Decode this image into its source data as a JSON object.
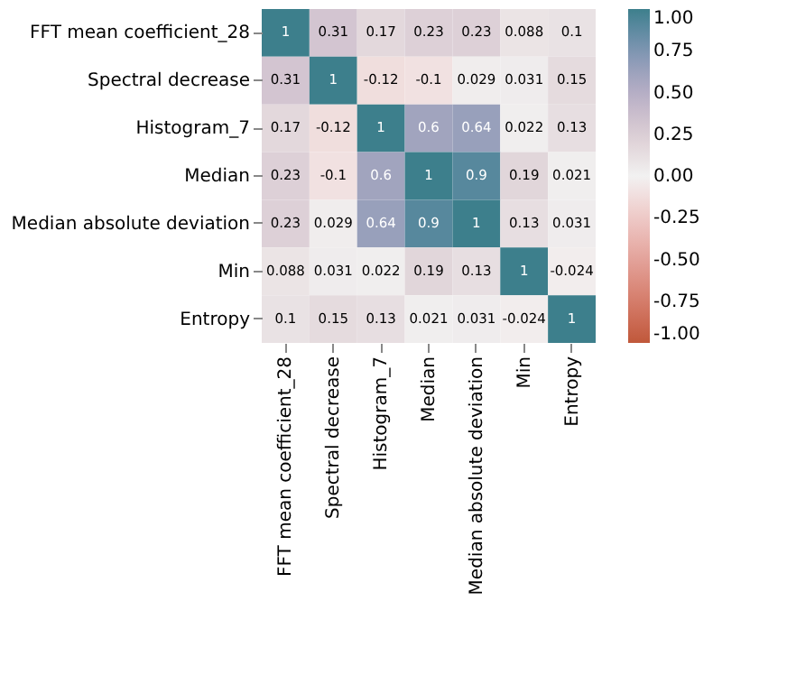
{
  "chart_data": {
    "type": "heatmap",
    "categories": [
      "FFT mean coefficient_28",
      "Spectral decrease",
      "Histogram_7",
      "Median",
      "Median absolute deviation",
      "Min",
      "Entropy"
    ],
    "y_categories": [
      "FFT mean coefficient_28",
      "Spectral decrease",
      "Histogram_7",
      "Median",
      "Median absolute deviation",
      "Min",
      "Entropy"
    ],
    "cells": [
      [
        1,
        0.31,
        0.17,
        0.23,
        0.23,
        0.088,
        0.1
      ],
      [
        0.31,
        1,
        -0.12,
        -0.1,
        0.029,
        0.031,
        0.15
      ],
      [
        0.17,
        -0.12,
        1,
        0.6,
        0.64,
        0.022,
        0.13
      ],
      [
        0.23,
        -0.1,
        0.6,
        1,
        0.9,
        0.19,
        0.021
      ],
      [
        0.23,
        0.029,
        0.64,
        0.9,
        1,
        0.13,
        0.031
      ],
      [
        0.088,
        0.031,
        0.022,
        0.19,
        0.13,
        1,
        -0.024
      ],
      [
        0.1,
        0.15,
        0.13,
        0.021,
        0.031,
        -0.024,
        1
      ]
    ],
    "colors": [
      "#c0583a",
      "#f2f1f1",
      "#3d7f8c"
    ],
    "clim": [
      -1,
      1
    ],
    "cticks": [
      {
        "value": -1,
        "label": "-1.00"
      },
      {
        "value": -0.75,
        "label": "-0.75"
      },
      {
        "value": -0.5,
        "label": "-0.50"
      },
      {
        "value": -0.25,
        "label": "-0.25"
      },
      {
        "value": 0,
        "label": "0.00"
      },
      {
        "value": 0.25,
        "label": "0.25"
      },
      {
        "value": 0.5,
        "label": "0.50"
      },
      {
        "value": 0.75,
        "label": "0.75"
      },
      {
        "value": 1,
        "label": "1.00"
      }
    ],
    "data_labels": true
  }
}
